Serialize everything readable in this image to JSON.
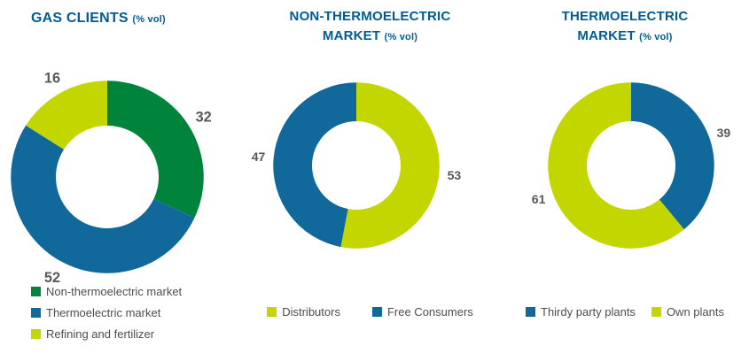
{
  "page": {
    "background": "#ffffff"
  },
  "colors": {
    "title_blue": "#005b96",
    "label_gray": "#58595b",
    "green": "#00843c",
    "blue": "#11689b",
    "lime": "#c3d600"
  },
  "chart_data": [
    {
      "type": "pie",
      "subtype": "donut",
      "title": "GAS CLIENTS (% vol)",
      "title_line1": "GAS CLIENTS",
      "suffix_line1": "(% vol)",
      "title_line2": "",
      "suffix_line2": "",
      "categories": [
        "Non-thermoelectric market",
        "Thermoelectric market",
        "Refining and fertilizer"
      ],
      "values": [
        32,
        52,
        16
      ],
      "colors": [
        "#00843c",
        "#11689b",
        "#c3d600"
      ],
      "start_angle_deg": 0,
      "direction": "clockwise",
      "legend_position": "bottom-left-vertical"
    },
    {
      "type": "pie",
      "subtype": "donut",
      "title": "NON-THERMOELECTRIC MARKET (% vol)",
      "title_line1": "NON-THERMOELECTRIC",
      "suffix_line1": "",
      "title_line2": "MARKET",
      "suffix_line2": "(% vol)",
      "categories": [
        "Distributors",
        "Free Consumers"
      ],
      "values": [
        53,
        47
      ],
      "colors": [
        "#c3d600",
        "#11689b"
      ],
      "start_angle_deg": 0,
      "direction": "clockwise",
      "legend_position": "bottom-center-horizontal"
    },
    {
      "type": "pie",
      "subtype": "donut",
      "title": "THERMOELECTRIC MARKET (% vol)",
      "title_line1": "THERMOELECTRIC",
      "suffix_line1": "",
      "title_line2": "MARKET",
      "suffix_line2": "(% vol)",
      "categories": [
        "Thirdy party plants",
        "Own plants"
      ],
      "values": [
        39,
        61
      ],
      "colors": [
        "#11689b",
        "#c3d600"
      ],
      "start_angle_deg": 0,
      "direction": "clockwise",
      "legend_position": "bottom-center-horizontal"
    }
  ]
}
